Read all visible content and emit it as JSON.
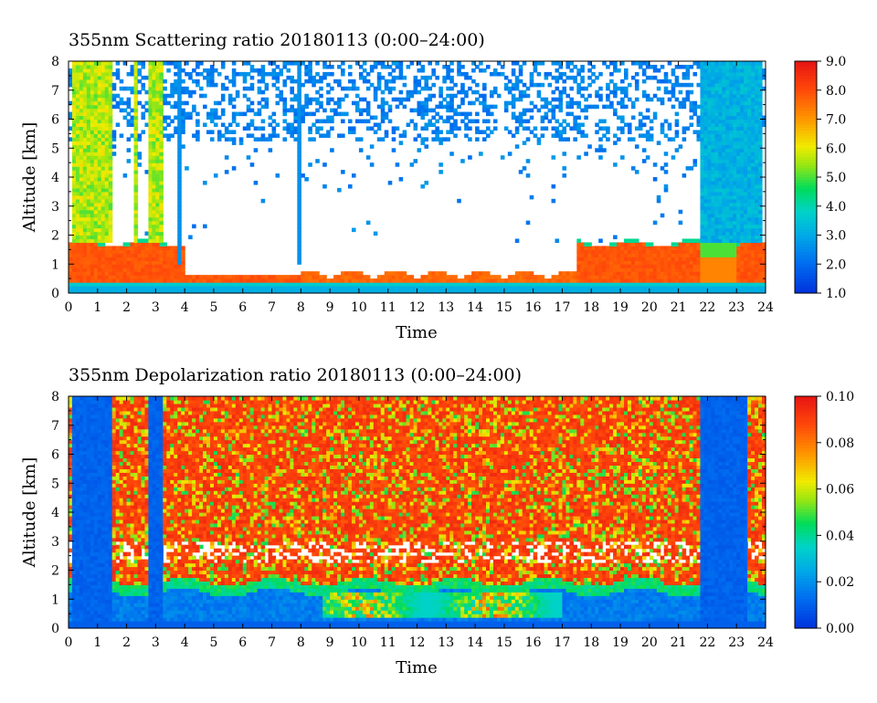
{
  "chart_data": [
    {
      "type": "heatmap",
      "title": "355nm Scattering ratio   20180113 (0:00–24:00)",
      "xlabel": "Time",
      "ylabel": "Altitude [km]",
      "xlim": [
        0,
        24
      ],
      "ylim": [
        0,
        8
      ],
      "x_ticks": [
        "0",
        "1",
        "2",
        "3",
        "4",
        "5",
        "6",
        "7",
        "8",
        "9",
        "10",
        "11",
        "12",
        "13",
        "14",
        "15",
        "16",
        "17",
        "18",
        "19",
        "20",
        "21",
        "22",
        "23",
        "24"
      ],
      "y_ticks": [
        "0",
        "1",
        "2",
        "3",
        "4",
        "5",
        "6",
        "7",
        "8"
      ],
      "colorbar": {
        "range": [
          1.0,
          9.0
        ],
        "tick_labels": [
          "9.0",
          "8.0",
          "7.0",
          "6.0",
          "5.0",
          "4.0",
          "3.0",
          "2.0",
          "1.0"
        ],
        "colormap": "rainbow"
      },
      "features": {
        "mixed_layer_top_km": 1.8,
        "cloud_columns_hours": [
          [
            0.1,
            1.5
          ],
          [
            2.2,
            2.4
          ],
          [
            2.7,
            3.2
          ],
          [
            21.7,
            23.9
          ]
        ],
        "thin_cloud_columns_hours": [
          3.8,
          4.0,
          7.9
        ]
      }
    },
    {
      "type": "heatmap",
      "title": "355nm Depolarization ratio   20180113 (0:00–24:00)",
      "xlabel": "Time",
      "ylabel": "Altitude [km]",
      "xlim": [
        0,
        24
      ],
      "ylim": [
        0,
        8
      ],
      "x_ticks": [
        "0",
        "1",
        "2",
        "3",
        "4",
        "5",
        "6",
        "7",
        "8",
        "9",
        "10",
        "11",
        "12",
        "13",
        "14",
        "15",
        "16",
        "17",
        "18",
        "19",
        "20",
        "21",
        "22",
        "23",
        "24"
      ],
      "y_ticks": [
        "0",
        "1",
        "2",
        "3",
        "4",
        "5",
        "6",
        "7",
        "8"
      ],
      "colorbar": {
        "range": [
          0.0,
          0.1
        ],
        "tick_labels": [
          "0.10",
          "0.08",
          "0.06",
          "0.04",
          "0.02",
          "0.00"
        ],
        "colormap": "rainbow"
      },
      "features": {
        "dust_layer_hours": [
          8.8,
          17.0
        ],
        "dust_layer_alt_km": [
          0.4,
          1.3
        ]
      }
    }
  ]
}
